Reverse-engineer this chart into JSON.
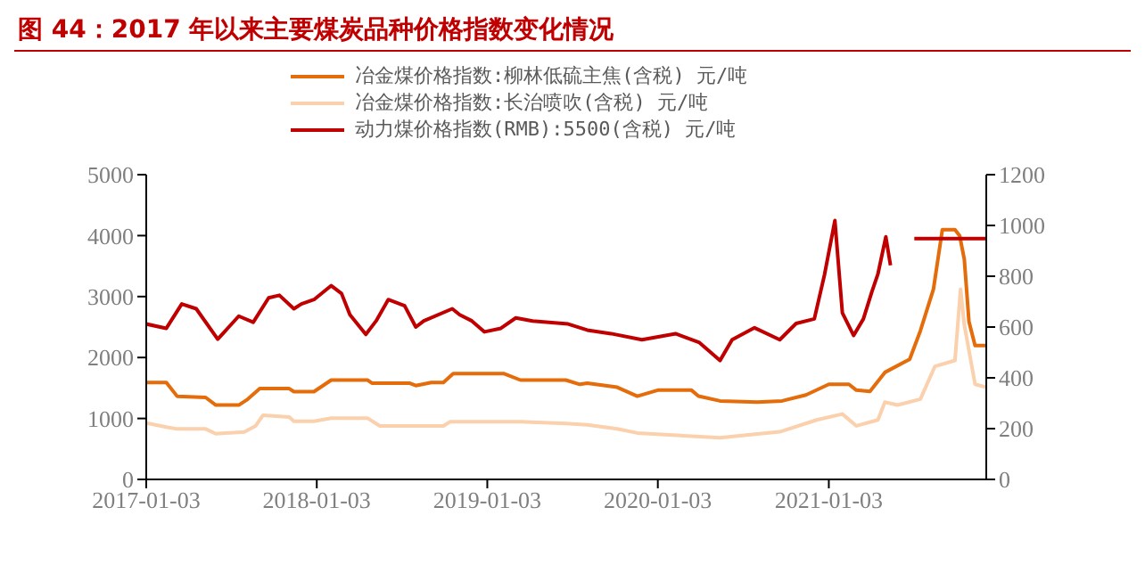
{
  "chart_data": {
    "type": "line",
    "title": "图 44：2017 年以来主要煤炭品种价格指数变化情况",
    "xlim": [
      "2017-01-03",
      "2021-12-06"
    ],
    "xticks": [
      "2017-01-03",
      "2018-01-03",
      "2019-01-03",
      "2020-01-03",
      "2021-01-03"
    ],
    "ylim": [
      0,
      5000
    ],
    "yticks": [
      0,
      1000,
      2000,
      3000,
      4000,
      5000
    ],
    "y2lim": [
      0,
      1200
    ],
    "y2ticks": [
      0,
      200,
      400,
      600,
      800,
      1000,
      1200
    ],
    "grid": false,
    "legend": "top",
    "marker": "none",
    "line_style": "solid",
    "series": [
      {
        "name": "冶金煤价格指数:柳林低硫主焦(含税) 元/吨",
        "color": "#e46c0a",
        "x": [
          "2017-01-03",
          "2017-02-15",
          "2017-03-10",
          "2017-05-10",
          "2017-06-01",
          "2017-07-20",
          "2017-08-08",
          "2017-09-03",
          "2017-11-05",
          "2017-11-15",
          "2017-12-28",
          "2018-02-03",
          "2018-04-22",
          "2018-05-01",
          "2018-07-20",
          "2018-08-03",
          "2018-09-05",
          "2018-10-01",
          "2018-10-22",
          "2019-02-08",
          "2019-03-15",
          "2019-06-20",
          "2019-07-20",
          "2019-08-05",
          "2019-10-08",
          "2019-11-20",
          "2020-01-03",
          "2020-03-15",
          "2020-03-30",
          "2020-05-15",
          "2020-08-03",
          "2020-09-25",
          "2020-11-15",
          "2021-01-03",
          "2021-02-15",
          "2021-03-03",
          "2021-04-01",
          "2021-05-03",
          "2021-06-25",
          "2021-07-18",
          "2021-08-15",
          "2021-09-03",
          "2021-09-30",
          "2021-10-10",
          "2021-10-20",
          "2021-10-30",
          "2021-11-12",
          "2021-12-06"
        ],
        "values": [
          1590,
          1590,
          1365,
          1345,
          1220,
          1220,
          1315,
          1490,
          1490,
          1440,
          1440,
          1630,
          1630,
          1580,
          1580,
          1540,
          1590,
          1590,
          1735,
          1735,
          1630,
          1630,
          1560,
          1580,
          1512,
          1366,
          1464,
          1464,
          1366,
          1288,
          1268,
          1288,
          1386,
          1561,
          1561,
          1464,
          1444,
          1756,
          1971,
          2439,
          3123,
          4098,
          4098,
          4000,
          3611,
          2587,
          2196,
          2196
        ]
      },
      {
        "name": "冶金煤价格指数:长治喷吹(含税) 元/吨",
        "color": "#fbd0ac",
        "x": [
          "2017-01-03",
          "2017-02-15",
          "2017-03-10",
          "2017-05-10",
          "2017-06-01",
          "2017-08-01",
          "2017-08-25",
          "2017-09-10",
          "2017-11-05",
          "2017-11-15",
          "2017-12-28",
          "2018-02-03",
          "2018-04-22",
          "2018-05-18",
          "2018-10-01",
          "2018-10-15",
          "2019-03-15",
          "2019-06-20",
          "2019-08-05",
          "2019-10-08",
          "2019-11-20",
          "2020-05-15",
          "2020-07-15",
          "2020-09-20",
          "2020-12-08",
          "2021-02-01",
          "2021-03-03",
          "2021-04-18",
          "2021-05-03",
          "2021-05-30",
          "2021-07-18",
          "2021-08-18",
          "2021-09-30",
          "2021-10-12",
          "2021-10-20",
          "2021-11-12",
          "2021-12-06"
        ],
        "values": [
          926,
          858,
          828,
          828,
          750,
          780,
          877,
          1053,
          1023,
          955,
          955,
          1004,
          1004,
          877,
          877,
          945,
          945,
          916,
          897,
          829,
          762,
          683,
          732,
          781,
          976,
          1073,
          878,
          976,
          1268,
          1220,
          1317,
          1854,
          1952,
          3123,
          2537,
          1561,
          1512
        ]
      },
      {
        "name": "动力煤价格指数(RMB):5500(含税) 元/吨",
        "color": "#c00000",
        "axis": "y2",
        "x": [
          "2017-01-03",
          "2017-02-15",
          "2017-03-20",
          "2017-04-20",
          "2017-06-05",
          "2017-07-20",
          "2017-08-20",
          "2017-09-22",
          "2017-10-15",
          "2017-11-15",
          "2017-12-01",
          "2017-12-28",
          "2018-02-03",
          "2018-02-25",
          "2018-03-15",
          "2018-04-18",
          "2018-05-10",
          "2018-06-05",
          "2018-07-10",
          "2018-08-03",
          "2018-08-20",
          "2018-10-20",
          "2018-11-05",
          "2018-12-01",
          "2018-12-28",
          "2019-02-01",
          "2019-03-05",
          "2019-04-10",
          "2019-06-25",
          "2019-08-05",
          "2019-09-25",
          "2019-11-30",
          "2020-02-10",
          "2020-04-01",
          "2020-05-15",
          "2020-06-10",
          "2020-07-28",
          "2020-09-20",
          "2020-10-25",
          "2020-12-03",
          "2020-12-25",
          "2021-01-16",
          "2021-02-01",
          "2021-02-25",
          "2021-03-18",
          "2021-04-05",
          "2021-04-18",
          "2021-05-05",
          "2021-05-15",
          "2021-05-20",
          "2021-07-05",
          "2021-12-06"
        ],
        "values": [
          612,
          595,
          691,
          672,
          552,
          643,
          619,
          715,
          725,
          672,
          691,
          708,
          763,
          732,
          648,
          571,
          624,
          708,
          684,
          600,
          624,
          672,
          648,
          624,
          581,
          595,
          636,
          624,
          612,
          588,
          574,
          550,
          574,
          539,
          468,
          550,
          597,
          550,
          614,
          632,
          808,
          1019,
          656,
          567,
          632,
          738,
          808,
          955,
          843,
          null,
          948,
          948
        ]
      }
    ]
  }
}
